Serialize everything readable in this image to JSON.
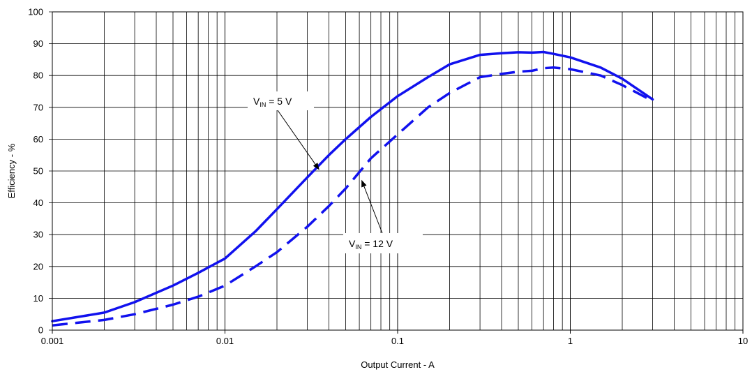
{
  "chart_data": {
    "type": "line",
    "title": "",
    "xlabel": "Output Current - A",
    "ylabel": "Efficiency - %",
    "x_scale": "log",
    "xlim": [
      0.001,
      10
    ],
    "ylim": [
      0,
      100
    ],
    "grid": true,
    "legend": "none",
    "x_ticks": [
      {
        "value": 0.001,
        "label": "0.001"
      },
      {
        "value": 0.01,
        "label": "0.01"
      },
      {
        "value": 0.1,
        "label": "0.1"
      },
      {
        "value": 1,
        "label": "1"
      },
      {
        "value": 10,
        "label": "10"
      }
    ],
    "y_ticks": [
      0,
      10,
      20,
      30,
      40,
      50,
      60,
      70,
      80,
      90,
      100
    ],
    "series": [
      {
        "line_style": "solid",
        "color": "#1111ee",
        "x": [
          0.001,
          0.002,
          0.003,
          0.005,
          0.007,
          0.01,
          0.015,
          0.02,
          0.03,
          0.04,
          0.05,
          0.07,
          0.1,
          0.15,
          0.2,
          0.3,
          0.4,
          0.5,
          0.6,
          0.7,
          0.8,
          1.0,
          1.5,
          2.0,
          3.0
        ],
        "y": [
          2.8,
          5.5,
          8.8,
          14.0,
          18.0,
          22.5,
          31.0,
          38.0,
          48.0,
          55.0,
          60.0,
          67.0,
          73.5,
          79.5,
          83.5,
          86.5,
          87.0,
          87.3,
          87.2,
          87.4,
          86.8,
          85.7,
          82.5,
          79.0,
          72.5
        ]
      },
      {
        "line_style": "dashed",
        "color": "#1111ee",
        "x": [
          0.001,
          0.002,
          0.003,
          0.005,
          0.007,
          0.01,
          0.015,
          0.02,
          0.03,
          0.04,
          0.05,
          0.07,
          0.1,
          0.15,
          0.2,
          0.3,
          0.4,
          0.5,
          0.6,
          0.7,
          0.8,
          1.0,
          1.5,
          2.0,
          3.0
        ],
        "y": [
          1.5,
          3.2,
          5.0,
          8.0,
          10.5,
          14.0,
          20.0,
          24.5,
          32.5,
          39.0,
          44.5,
          54.0,
          61.5,
          70.0,
          74.5,
          79.5,
          80.5,
          81.2,
          81.5,
          82.3,
          82.5,
          82.0,
          80.0,
          77.0,
          72.0
        ]
      }
    ],
    "annotations": [
      {
        "base": "V",
        "sub": "IN",
        "tail": " = 5 V",
        "arrow_to": {
          "x": 0.035,
          "y": 50.5
        }
      },
      {
        "base": "V",
        "sub": "IN",
        "tail": " = 12 V",
        "arrow_to": {
          "x": 0.062,
          "y": 47.0
        }
      }
    ]
  }
}
